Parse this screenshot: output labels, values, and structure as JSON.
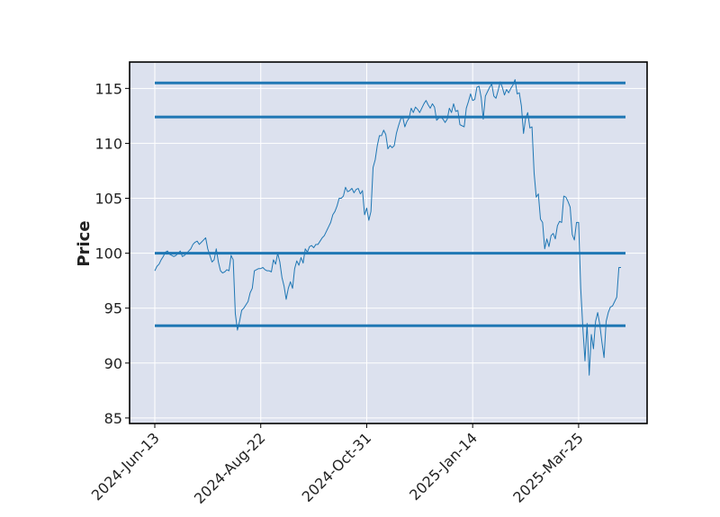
{
  "chart_data": {
    "type": "line",
    "title": "",
    "xlabel": "",
    "ylabel": "Price",
    "ylim": [
      84.5,
      117.4
    ],
    "yticks": [
      85,
      90,
      95,
      100,
      105,
      110,
      115
    ],
    "xticks": [
      {
        "label": "2024-Jun-13",
        "index": 0
      },
      {
        "label": "2024-Aug-22",
        "index": 50
      },
      {
        "label": "2024-Oct-31",
        "index": 100
      },
      {
        "label": "2025-Jan-14",
        "index": 150
      },
      {
        "label": "2025-Mar-25",
        "index": 200
      }
    ],
    "grid": true,
    "colors": {
      "plot_background": "#dce1ee",
      "grid": "#ffffff",
      "frame": "#000000",
      "price_line": "#1f77b4",
      "level_line": "#1f77b4"
    },
    "series": [
      {
        "values": [
          98.4,
          98.8,
          99.0,
          99.4,
          99.7,
          100.1,
          100.2,
          99.9,
          99.8,
          99.7,
          99.8,
          100.0,
          100.2,
          99.7,
          99.8,
          100.0,
          100.2,
          100.4,
          100.8,
          101.0,
          101.1,
          100.8,
          101.0,
          101.2,
          101.4,
          100.4,
          99.8,
          99.2,
          99.4,
          100.4,
          99.2,
          98.4,
          98.2,
          98.3,
          98.5,
          98.4,
          99.8,
          99.4,
          94.5,
          93.0,
          93.8,
          94.8,
          95.0,
          95.3,
          95.6,
          96.4,
          96.8,
          98.4,
          98.5,
          98.6,
          98.6,
          98.7,
          98.5,
          98.4,
          98.4,
          98.3,
          99.4,
          99.0,
          100.0,
          99.2,
          97.8,
          97.0,
          95.8,
          96.8,
          97.4,
          96.8,
          98.6,
          99.3,
          98.9,
          99.6,
          99.1,
          100.4,
          100.1,
          100.6,
          100.7,
          100.5,
          100.8,
          100.8,
          101.1,
          101.4,
          101.6,
          102.0,
          102.4,
          102.8,
          103.5,
          103.8,
          104.3,
          105.0,
          105.0,
          105.2,
          106.0,
          105.6,
          105.7,
          105.9,
          105.5,
          105.8,
          105.9,
          105.4,
          105.7,
          103.5,
          104.1,
          103.0,
          103.8,
          107.8,
          108.5,
          109.8,
          110.7,
          110.7,
          111.2,
          110.8,
          109.5,
          109.8,
          109.6,
          109.8,
          110.9,
          111.6,
          112.2,
          112.4,
          111.5,
          112.0,
          112.3,
          113.2,
          112.8,
          113.3,
          113.1,
          112.8,
          113.2,
          113.6,
          113.9,
          113.5,
          113.2,
          113.6,
          113.3,
          112.1,
          112.3,
          112.4,
          112.2,
          111.9,
          112.2,
          113.2,
          112.8,
          113.6,
          112.9,
          113.0,
          111.7,
          111.6,
          111.5,
          113.2,
          113.8,
          114.5,
          113.9,
          114.0,
          115.1,
          115.2,
          114.2,
          112.2,
          114.3,
          114.7,
          115.1,
          115.4,
          114.3,
          114.1,
          114.8,
          115.6,
          115.1,
          114.4,
          114.9,
          114.6,
          115.0,
          115.3,
          115.8,
          114.5,
          114.6,
          113.4,
          110.9,
          112.3,
          112.8,
          111.4,
          111.5,
          107.3,
          105.1,
          105.4,
          103.1,
          102.8,
          100.4,
          101.3,
          100.6,
          101.6,
          101.8,
          101.3,
          102.5,
          102.9,
          102.8,
          105.2,
          105.1,
          104.7,
          104.2,
          101.7,
          101.2,
          102.8,
          102.8,
          96.8,
          93.2,
          90.2,
          93.6,
          88.9,
          92.6,
          91.3,
          93.8,
          94.6,
          93.5,
          91.9,
          90.5,
          93.8,
          94.6,
          95.1,
          95.2,
          95.6,
          96.0,
          98.7,
          98.7
        ]
      }
    ],
    "horizontal_levels": [
      115.5,
      112.4,
      100.0,
      93.4
    ]
  }
}
